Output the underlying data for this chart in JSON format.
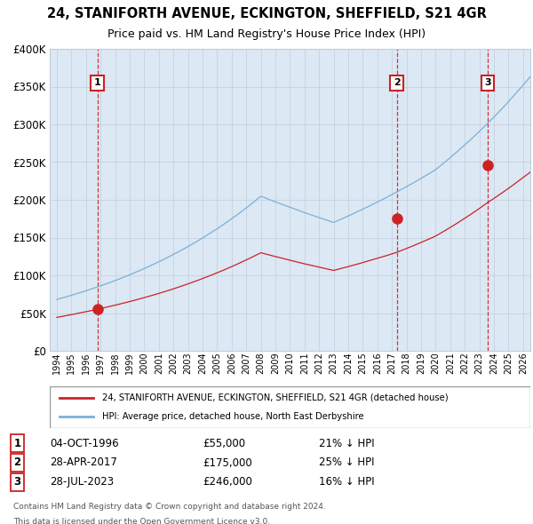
{
  "title": "24, STANIFORTH AVENUE, ECKINGTON, SHEFFIELD, S21 4GR",
  "subtitle": "Price paid vs. HM Land Registry's House Price Index (HPI)",
  "legend_line1": "24, STANIFORTH AVENUE, ECKINGTON, SHEFFIELD, S21 4GR (detached house)",
  "legend_line2": "HPI: Average price, detached house, North East Derbyshire",
  "footer1": "Contains HM Land Registry data © Crown copyright and database right 2024.",
  "footer2": "This data is licensed under the Open Government Licence v3.0.",
  "sale_markers": [
    {
      "label": "1",
      "date_str": "04-OCT-1996",
      "price": 55000,
      "hpi_pct": "21% ↓ HPI",
      "year": 1996.78
    },
    {
      "label": "2",
      "date_str": "28-APR-2017",
      "price": 175000,
      "hpi_pct": "25% ↓ HPI",
      "year": 2017.33
    },
    {
      "label": "3",
      "date_str": "28-JUL-2023",
      "price": 246000,
      "hpi_pct": "16% ↓ HPI",
      "year": 2023.58
    }
  ],
  "hpi_color": "#7ab0d8",
  "price_color": "#cc2222",
  "marker_color": "#cc2222",
  "vline_color": "#cc2222",
  "grid_color": "#c0cedd",
  "plot_bg": "#dce8f4",
  "ylim": [
    0,
    400000
  ],
  "yticks": [
    0,
    50000,
    100000,
    150000,
    200000,
    250000,
    300000,
    350000,
    400000
  ],
  "ytick_labels": [
    "£0",
    "£50K",
    "£100K",
    "£150K",
    "£200K",
    "£250K",
    "£300K",
    "£350K",
    "£400K"
  ],
  "xlim_start": 1993.5,
  "xlim_end": 2026.5,
  "xticks": [
    1994,
    1995,
    1996,
    1997,
    1998,
    1999,
    2000,
    2001,
    2002,
    2003,
    2004,
    2005,
    2006,
    2007,
    2008,
    2009,
    2010,
    2011,
    2012,
    2013,
    2014,
    2015,
    2016,
    2017,
    2018,
    2019,
    2020,
    2021,
    2022,
    2023,
    2024,
    2025,
    2026
  ]
}
